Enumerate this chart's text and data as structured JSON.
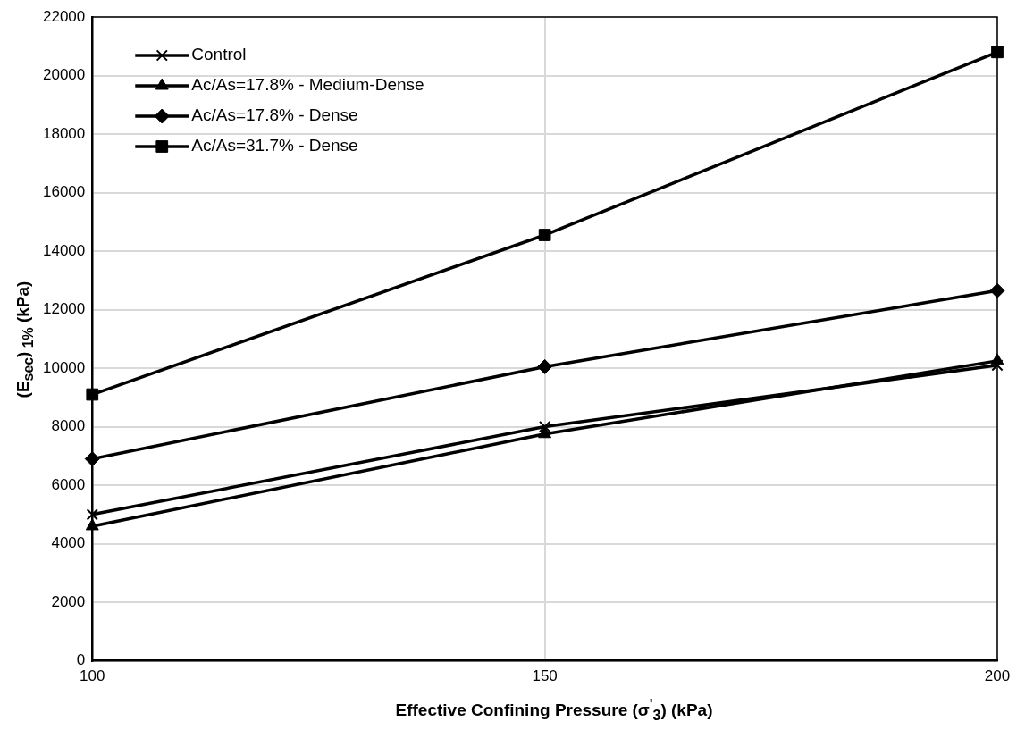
{
  "chart_data": {
    "type": "line",
    "xlabel": "Effective Confining Pressure (σ$^{'}$$_{3}$) (kPa)",
    "ylabel": "(E$_{sec}$)$_{ 1%}$ (kPa)",
    "x": [
      100,
      150,
      200
    ],
    "xlim": [
      100,
      200
    ],
    "xticks": [
      100,
      150,
      200
    ],
    "ylim": [
      0,
      22000
    ],
    "yticks": [
      0,
      2000,
      4000,
      6000,
      8000,
      10000,
      12000,
      14000,
      16000,
      18000,
      20000,
      22000
    ],
    "grid": true,
    "legend": "top left",
    "line_style": "solid",
    "series": [
      {
        "name": "Control",
        "color": "#000000",
        "marker": "cross",
        "values": [
          5000,
          8000,
          10100
        ]
      },
      {
        "name": "Ac/As=17.8% - Medium-Dense",
        "color": "#000000",
        "marker": "triangle",
        "values": [
          4600,
          7750,
          10250
        ]
      },
      {
        "name": "Ac/As=17.8% - Dense",
        "color": "#000000",
        "marker": "diamond",
        "values": [
          6900,
          10050,
          12650
        ]
      },
      {
        "name": "Ac/As=31.7% - Dense",
        "color": "#000000",
        "marker": "square",
        "values": [
          9100,
          14550,
          20800
        ]
      }
    ]
  }
}
